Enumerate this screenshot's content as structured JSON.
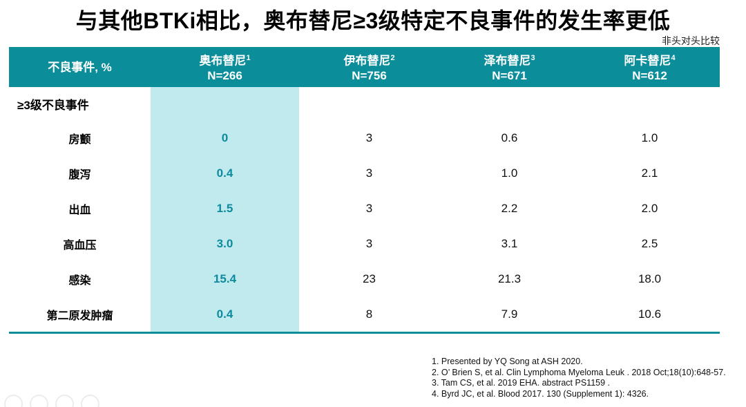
{
  "title": "与其他BTKi相比，奥布替尼≥3级特定不良事件的发生率更低",
  "note_top_right": "非头对头比较",
  "colors": {
    "header_teal": "#0c8d9a",
    "highlight_column": "#c0eaee",
    "accent_text": "#0d8a9e"
  },
  "table": {
    "header": {
      "col0": "不良事件, %",
      "drugs": [
        {
          "name": "奥布替尼",
          "sup": "1",
          "n": "N=266"
        },
        {
          "name": "伊布替尼",
          "sup": "2",
          "n": "N=756"
        },
        {
          "name": "泽布替尼",
          "sup": "3",
          "n": "N=671"
        },
        {
          "name": "阿卡替尼",
          "sup": "4",
          "n": "N=612"
        }
      ]
    },
    "section_label": "≥3级不良事件",
    "rows": [
      {
        "label": "房颤",
        "values": [
          "0",
          "3",
          "0.6",
          "1.0"
        ]
      },
      {
        "label": "腹泻",
        "values": [
          "0.4",
          "3",
          "1.0",
          "2.1"
        ]
      },
      {
        "label": "出血",
        "values": [
          "1.5",
          "3",
          "2.2",
          "2.0"
        ]
      },
      {
        "label": "高血压",
        "values": [
          "3.0",
          "3",
          "3.1",
          "2.5"
        ]
      },
      {
        "label": "感染",
        "values": [
          "15.4",
          "23",
          "21.3",
          "18.0"
        ]
      },
      {
        "label": "第二原发肿瘤",
        "values": [
          "0.4",
          "8",
          "7.9",
          "10.6"
        ]
      }
    ]
  },
  "footnotes": [
    "1. Presented by YQ Song at ASH 2020.",
    "2. O’ Brien S, et al. Clin Lymphoma Myeloma Leuk . 2018 Oct;18(10):648-57.",
    "3. Tam CS, et al. 2019 EHA. abstract PS1159 .",
    "4. Byrd JC, et al. Blood 2017. 130 (Supplement 1): 4326."
  ]
}
